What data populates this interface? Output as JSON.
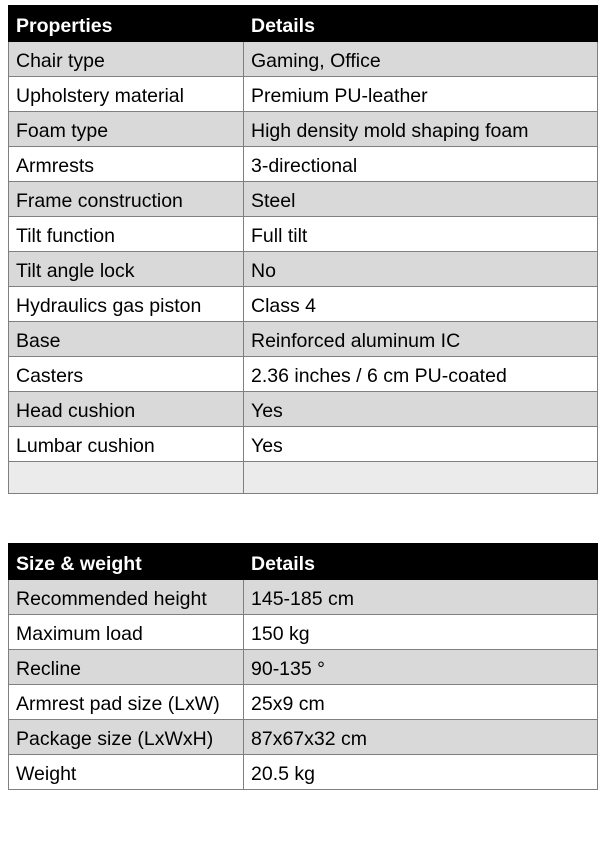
{
  "properties_table": {
    "headers": [
      "Properties",
      "Details"
    ],
    "rows": [
      [
        "Chair type",
        "Gaming, Office"
      ],
      [
        "Upholstery material",
        "Premium PU-leather"
      ],
      [
        "Foam type",
        "High density mold shaping foam"
      ],
      [
        "Armrests",
        "3-directional"
      ],
      [
        "Frame construction",
        "Steel"
      ],
      [
        "Tilt function",
        "Full tilt"
      ],
      [
        "Tilt angle lock",
        "No"
      ],
      [
        "Hydraulics gas piston",
        "Class 4"
      ],
      [
        "Base",
        "Reinforced aluminum IC"
      ],
      [
        "Casters",
        "2.36 inches / 6 cm PU-coated"
      ],
      [
        "Head cushion",
        "Yes"
      ],
      [
        "Lumbar cushion",
        "Yes"
      ],
      [
        "",
        ""
      ]
    ]
  },
  "size_table": {
    "headers": [
      "Size & weight",
      "Details"
    ],
    "rows": [
      [
        "Recommended height",
        "145-185 cm"
      ],
      [
        "Maximum load",
        "150 kg"
      ],
      [
        "Recline",
        "90-135 °"
      ],
      [
        "Armrest pad size (LxW)",
        "25x9 cm"
      ],
      [
        "Package size (LxWxH)",
        "87x67x32 cm"
      ],
      [
        "Weight",
        "20.5 kg"
      ]
    ]
  }
}
